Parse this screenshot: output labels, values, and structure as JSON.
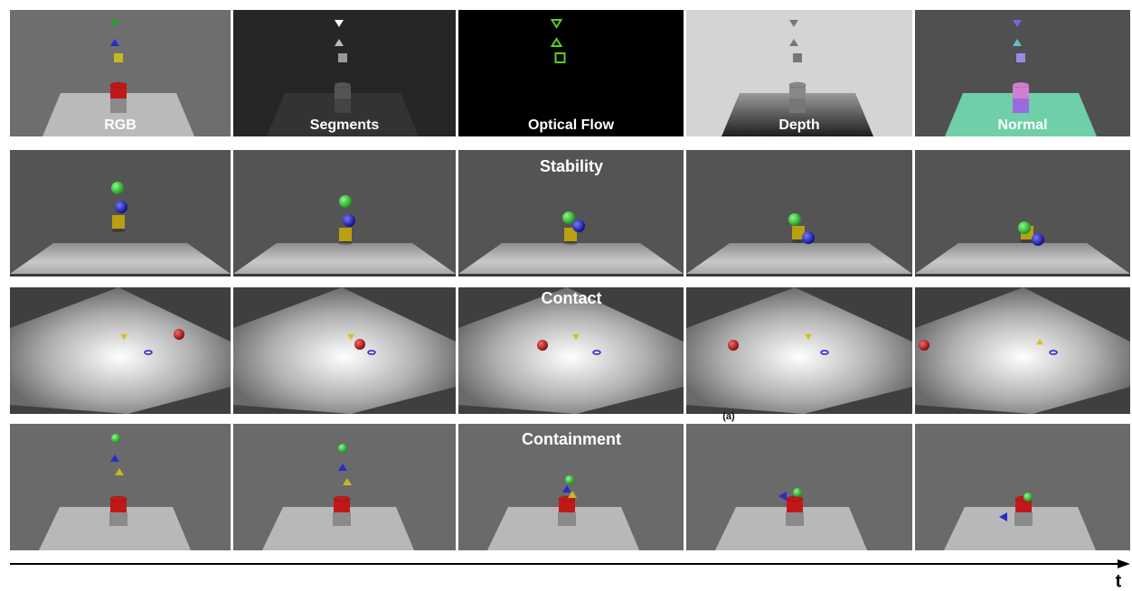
{
  "figure": {
    "modalities": [
      "RGB",
      "Segments",
      "Optical Flow",
      "Depth",
      "Normal"
    ],
    "rows": [
      "Stability",
      "Contact",
      "Containment"
    ],
    "panel_label": "(a)",
    "time_axis": "t"
  }
}
